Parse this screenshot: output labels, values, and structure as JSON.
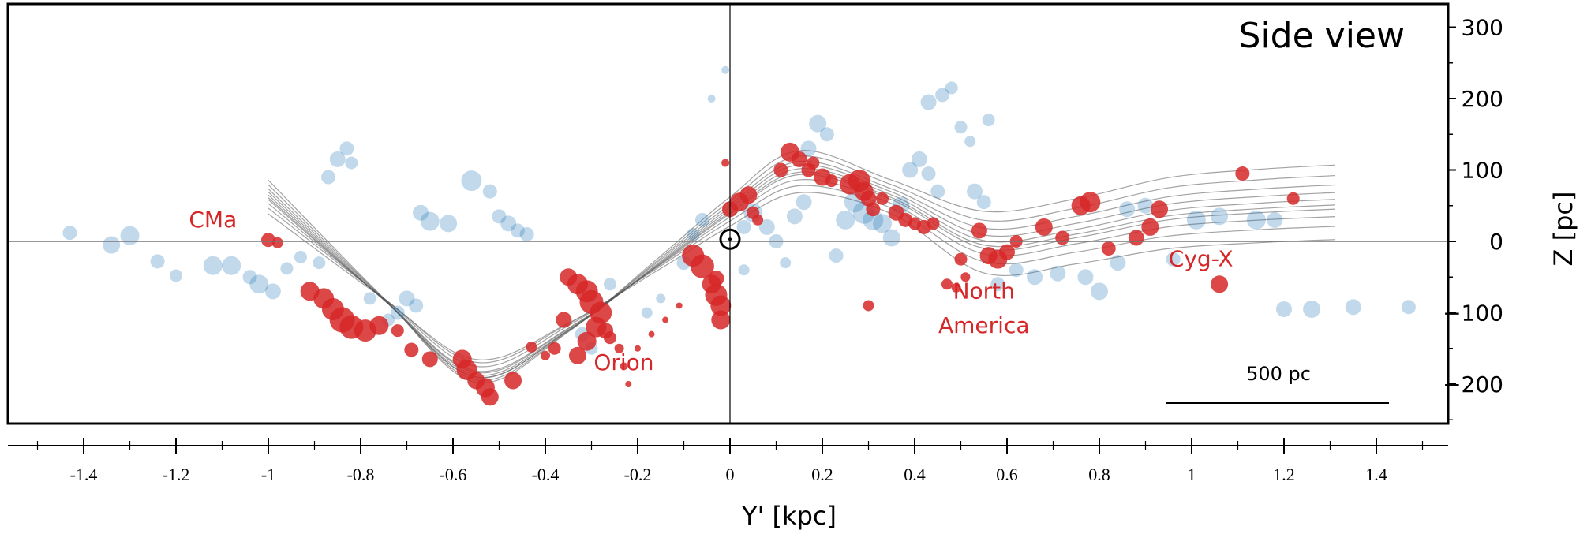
{
  "chart_data": {
    "type": "scatter",
    "title": "Side view",
    "xlabel": "Y' [kpc]",
    "ylabel": "Z [pc]",
    "xlim": [
      -1.55,
      1.55
    ],
    "ylim": [
      -255,
      330
    ],
    "x_ticks": [
      -1.4,
      -1.2,
      -1,
      -0.8,
      -0.6,
      -0.4,
      -0.2,
      0,
      0.2,
      0.4,
      0.6,
      0.8,
      1,
      1.2,
      1.4
    ],
    "x_tick_labels": [
      "-1.4",
      "-1.2",
      "-1",
      "-0.8",
      "-0.6",
      "-0.4",
      "-0.2",
      "0",
      "0.2",
      "0.4",
      "0.6",
      "0.8",
      "1",
      "1.2",
      "1.4"
    ],
    "y_ticks": [
      300,
      200,
      100,
      0,
      -100,
      -200
    ],
    "y_tick_labels": [
      "300",
      "200",
      "100",
      "0",
      "−100",
      "−200"
    ],
    "scale_bar": {
      "label": "500 pc",
      "length_kpc": 0.5
    },
    "sun": {
      "x": 0.0,
      "y": 3
    },
    "colors": {
      "wave": "#d62728",
      "other": "#1f77b4",
      "fits": "#555555",
      "frame": "#000000"
    },
    "annotations": [
      {
        "text": "CMa",
        "x": -1.12,
        "y": 20
      },
      {
        "text": "Orion",
        "x": -0.23,
        "y": -180
      },
      {
        "text": "North",
        "x": 0.55,
        "y": -80
      },
      {
        "text": "America",
        "x": 0.55,
        "y": -128
      },
      {
        "text": "Cyg-X",
        "x": 1.02,
        "y": -35
      }
    ],
    "series": [
      {
        "color": "#d62728",
        "points": [
          [
            -1.0,
            2,
            9
          ],
          [
            -0.98,
            -2,
            7
          ],
          [
            -0.91,
            -70,
            12
          ],
          [
            -0.88,
            -80,
            13
          ],
          [
            -0.86,
            -95,
            14
          ],
          [
            -0.84,
            -110,
            16
          ],
          [
            -0.82,
            -120,
            15
          ],
          [
            -0.79,
            -125,
            14
          ],
          [
            -0.76,
            -118,
            12
          ],
          [
            -0.72,
            -125,
            8
          ],
          [
            -0.69,
            -152,
            9
          ],
          [
            -0.65,
            -165,
            10
          ],
          [
            -0.58,
            -165,
            12
          ],
          [
            -0.57,
            -180,
            13
          ],
          [
            -0.55,
            -195,
            11
          ],
          [
            -0.53,
            -205,
            12
          ],
          [
            -0.52,
            -218,
            11
          ],
          [
            -0.47,
            -195,
            11
          ],
          [
            -0.43,
            -148,
            7
          ],
          [
            -0.4,
            -160,
            6
          ],
          [
            -0.38,
            -150,
            8
          ],
          [
            -0.36,
            -110,
            10
          ],
          [
            -0.35,
            -50,
            11
          ],
          [
            -0.33,
            -60,
            13
          ],
          [
            -0.31,
            -70,
            14
          ],
          [
            -0.3,
            -85,
            15
          ],
          [
            -0.28,
            -100,
            14
          ],
          [
            -0.29,
            -120,
            13
          ],
          [
            -0.31,
            -140,
            12
          ],
          [
            -0.33,
            -160,
            11
          ],
          [
            -0.27,
            -125,
            10
          ],
          [
            -0.26,
            -135,
            8
          ],
          [
            -0.24,
            -150,
            6
          ],
          [
            -0.23,
            -175,
            5
          ],
          [
            -0.22,
            -200,
            4
          ],
          [
            -0.2,
            -150,
            4
          ],
          [
            -0.17,
            -130,
            4
          ],
          [
            -0.14,
            -110,
            4
          ],
          [
            -0.11,
            -90,
            4
          ],
          [
            -0.08,
            -20,
            14
          ],
          [
            -0.06,
            -35,
            15
          ],
          [
            -0.04,
            -60,
            12
          ],
          [
            -0.03,
            -75,
            14
          ],
          [
            -0.02,
            -90,
            13
          ],
          [
            -0.02,
            -110,
            12
          ],
          [
            -0.03,
            -52,
            10
          ],
          [
            -0.01,
            110,
            5
          ],
          [
            0.0,
            45,
            10
          ],
          [
            0.02,
            55,
            12
          ],
          [
            0.04,
            65,
            11
          ],
          [
            0.05,
            40,
            8
          ],
          [
            0.06,
            30,
            7
          ],
          [
            0.11,
            100,
            9
          ],
          [
            0.13,
            125,
            12
          ],
          [
            0.15,
            115,
            10
          ],
          [
            0.17,
            100,
            9
          ],
          [
            0.18,
            110,
            8
          ],
          [
            0.2,
            90,
            11
          ],
          [
            0.22,
            85,
            8
          ],
          [
            0.26,
            80,
            13
          ],
          [
            0.28,
            85,
            14
          ],
          [
            0.29,
            70,
            12
          ],
          [
            0.3,
            60,
            10
          ],
          [
            0.31,
            45,
            9
          ],
          [
            0.33,
            60,
            8
          ],
          [
            0.36,
            40,
            10
          ],
          [
            0.38,
            30,
            9
          ],
          [
            0.4,
            25,
            8
          ],
          [
            0.42,
            20,
            9
          ],
          [
            0.44,
            25,
            8
          ],
          [
            0.47,
            -60,
            7
          ],
          [
            0.49,
            -65,
            6
          ],
          [
            0.51,
            -50,
            6
          ],
          [
            0.54,
            15,
            10
          ],
          [
            0.56,
            -20,
            11
          ],
          [
            0.58,
            -25,
            12
          ],
          [
            0.6,
            -15,
            10
          ],
          [
            0.62,
            0,
            8
          ],
          [
            0.68,
            20,
            11
          ],
          [
            0.72,
            5,
            9
          ],
          [
            0.76,
            50,
            12
          ],
          [
            0.78,
            55,
            13
          ],
          [
            0.82,
            -10,
            9
          ],
          [
            0.88,
            5,
            10
          ],
          [
            0.91,
            20,
            11
          ],
          [
            0.93,
            45,
            11
          ],
          [
            1.06,
            -60,
            11
          ],
          [
            1.11,
            95,
            9
          ],
          [
            1.22,
            60,
            8
          ],
          [
            0.3,
            -90,
            7
          ],
          [
            0.5,
            -25,
            8
          ]
        ]
      },
      {
        "color": "#1f77b4",
        "points": [
          [
            -1.43,
            12,
            9
          ],
          [
            -1.34,
            -5,
            11
          ],
          [
            -1.3,
            8,
            12
          ],
          [
            -1.24,
            -28,
            9
          ],
          [
            -1.2,
            -48,
            8
          ],
          [
            -1.12,
            -34,
            12
          ],
          [
            -1.08,
            -34,
            12
          ],
          [
            -1.04,
            -50,
            9
          ],
          [
            -1.02,
            -60,
            12
          ],
          [
            -0.99,
            -70,
            10
          ],
          [
            -0.96,
            -38,
            8
          ],
          [
            -0.93,
            -22,
            8
          ],
          [
            -0.89,
            -30,
            8
          ],
          [
            -0.87,
            90,
            9
          ],
          [
            -0.85,
            115,
            10
          ],
          [
            -0.83,
            130,
            9
          ],
          [
            -0.82,
            110,
            8
          ],
          [
            -0.78,
            -80,
            8
          ],
          [
            -0.72,
            -100,
            9
          ],
          [
            -0.7,
            -80,
            10
          ],
          [
            -0.68,
            -90,
            9
          ],
          [
            -0.67,
            40,
            10
          ],
          [
            -0.65,
            28,
            12
          ],
          [
            -0.61,
            25,
            11
          ],
          [
            -0.56,
            85,
            13
          ],
          [
            -0.52,
            70,
            9
          ],
          [
            -0.5,
            35,
            9
          ],
          [
            -0.48,
            25,
            10
          ],
          [
            -0.46,
            15,
            9
          ],
          [
            -0.44,
            10,
            9
          ],
          [
            -0.32,
            -130,
            9
          ],
          [
            -0.3,
            -150,
            8
          ],
          [
            -0.26,
            -60,
            8
          ],
          [
            -0.18,
            -100,
            7
          ],
          [
            -0.15,
            -80,
            6
          ],
          [
            -0.1,
            -30,
            9
          ],
          [
            -0.08,
            10,
            8
          ],
          [
            -0.06,
            30,
            9
          ],
          [
            -0.04,
            200,
            5
          ],
          [
            -0.01,
            240,
            5
          ],
          [
            0.03,
            20,
            9
          ],
          [
            0.05,
            40,
            12
          ],
          [
            0.08,
            20,
            10
          ],
          [
            0.1,
            0,
            9
          ],
          [
            0.12,
            -30,
            7
          ],
          [
            0.14,
            35,
            10
          ],
          [
            0.16,
            55,
            10
          ],
          [
            0.17,
            130,
            10
          ],
          [
            0.19,
            165,
            11
          ],
          [
            0.21,
            150,
            9
          ],
          [
            0.23,
            -20,
            9
          ],
          [
            0.25,
            30,
            12
          ],
          [
            0.27,
            55,
            13
          ],
          [
            0.29,
            40,
            14
          ],
          [
            0.31,
            30,
            13
          ],
          [
            0.33,
            25,
            12
          ],
          [
            0.35,
            5,
            11
          ],
          [
            0.37,
            50,
            11
          ],
          [
            0.39,
            100,
            10
          ],
          [
            0.41,
            115,
            10
          ],
          [
            0.43,
            95,
            9
          ],
          [
            0.45,
            70,
            9
          ],
          [
            0.43,
            195,
            10
          ],
          [
            0.46,
            205,
            9
          ],
          [
            0.48,
            215,
            8
          ],
          [
            0.5,
            160,
            8
          ],
          [
            0.52,
            140,
            7
          ],
          [
            0.53,
            70,
            10
          ],
          [
            0.55,
            55,
            9
          ],
          [
            0.56,
            170,
            8
          ],
          [
            0.58,
            -60,
            9
          ],
          [
            0.62,
            -40,
            9
          ],
          [
            0.66,
            -50,
            10
          ],
          [
            0.71,
            -45,
            10
          ],
          [
            0.77,
            -50,
            10
          ],
          [
            0.8,
            -70,
            11
          ],
          [
            0.84,
            -30,
            10
          ],
          [
            0.86,
            45,
            10
          ],
          [
            0.9,
            50,
            10
          ],
          [
            0.96,
            -25,
            9
          ],
          [
            1.01,
            30,
            12
          ],
          [
            1.06,
            35,
            11
          ],
          [
            1.14,
            30,
            12
          ],
          [
            1.18,
            30,
            10
          ],
          [
            1.2,
            -95,
            10
          ],
          [
            1.26,
            -95,
            11
          ],
          [
            1.35,
            -92,
            10
          ],
          [
            1.47,
            -92,
            9
          ],
          [
            -0.74,
            -110,
            8
          ],
          [
            0.03,
            -40,
            7
          ]
        ]
      }
    ],
    "fit_curves": {
      "count": 10,
      "x_range": [
        -1.0,
        1.31
      ],
      "base_anchor_points": [
        [
          -1.0,
          60
        ],
        [
          -0.75,
          -80
        ],
        [
          -0.55,
          -180
        ],
        [
          -0.35,
          -120
        ],
        [
          -0.15,
          -30
        ],
        [
          0.0,
          40
        ],
        [
          0.15,
          95
        ],
        [
          0.35,
          60
        ],
        [
          0.55,
          -5
        ],
        [
          0.75,
          10
        ],
        [
          0.95,
          35
        ],
        [
          1.15,
          45
        ],
        [
          1.31,
          50
        ]
      ],
      "amplitude_jitter": [
        0.85,
        0.9,
        0.95,
        1.0,
        1.02,
        1.05,
        1.08,
        1.1,
        1.14,
        1.18
      ],
      "offset_jitter": [
        -25,
        -15,
        -8,
        -3,
        0,
        4,
        9,
        15,
        22,
        30
      ]
    }
  }
}
